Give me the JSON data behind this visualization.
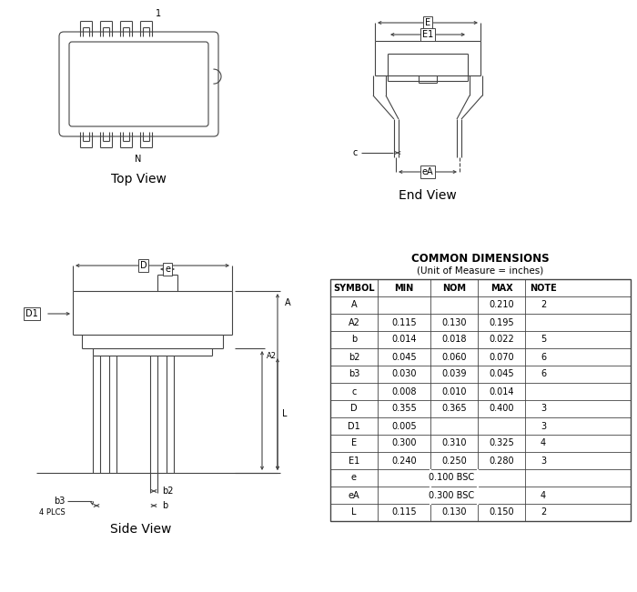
{
  "bg_color": "#ffffff",
  "lc": "#444444",
  "lw": 0.8,
  "table_title": "COMMON DIMENSIONS",
  "table_subtitle": "(Unit of Measure = inches)",
  "table_headers": [
    "SYMBOL",
    "MIN",
    "NOM",
    "MAX",
    "NOTE"
  ],
  "table_rows": [
    [
      "A",
      "",
      "",
      "0.210",
      "2"
    ],
    [
      "A2",
      "0.115",
      "0.130",
      "0.195",
      ""
    ],
    [
      "b",
      "0.014",
      "0.018",
      "0.022",
      "5"
    ],
    [
      "b2",
      "0.045",
      "0.060",
      "0.070",
      "6"
    ],
    [
      "b3",
      "0.030",
      "0.039",
      "0.045",
      "6"
    ],
    [
      "c",
      "0.008",
      "0.010",
      "0.014",
      ""
    ],
    [
      "D",
      "0.355",
      "0.365",
      "0.400",
      "3"
    ],
    [
      "D1",
      "0.005",
      "",
      "",
      "3"
    ],
    [
      "E",
      "0.300",
      "0.310",
      "0.325",
      "4"
    ],
    [
      "E1",
      "0.240",
      "0.250",
      "0.280",
      "3"
    ],
    [
      "e",
      "0.100 BSC",
      "",
      "",
      ""
    ],
    [
      "eA",
      "0.300 BSC",
      "",
      "",
      "4"
    ],
    [
      "L",
      "0.115",
      "0.130",
      "0.150",
      "2"
    ]
  ]
}
